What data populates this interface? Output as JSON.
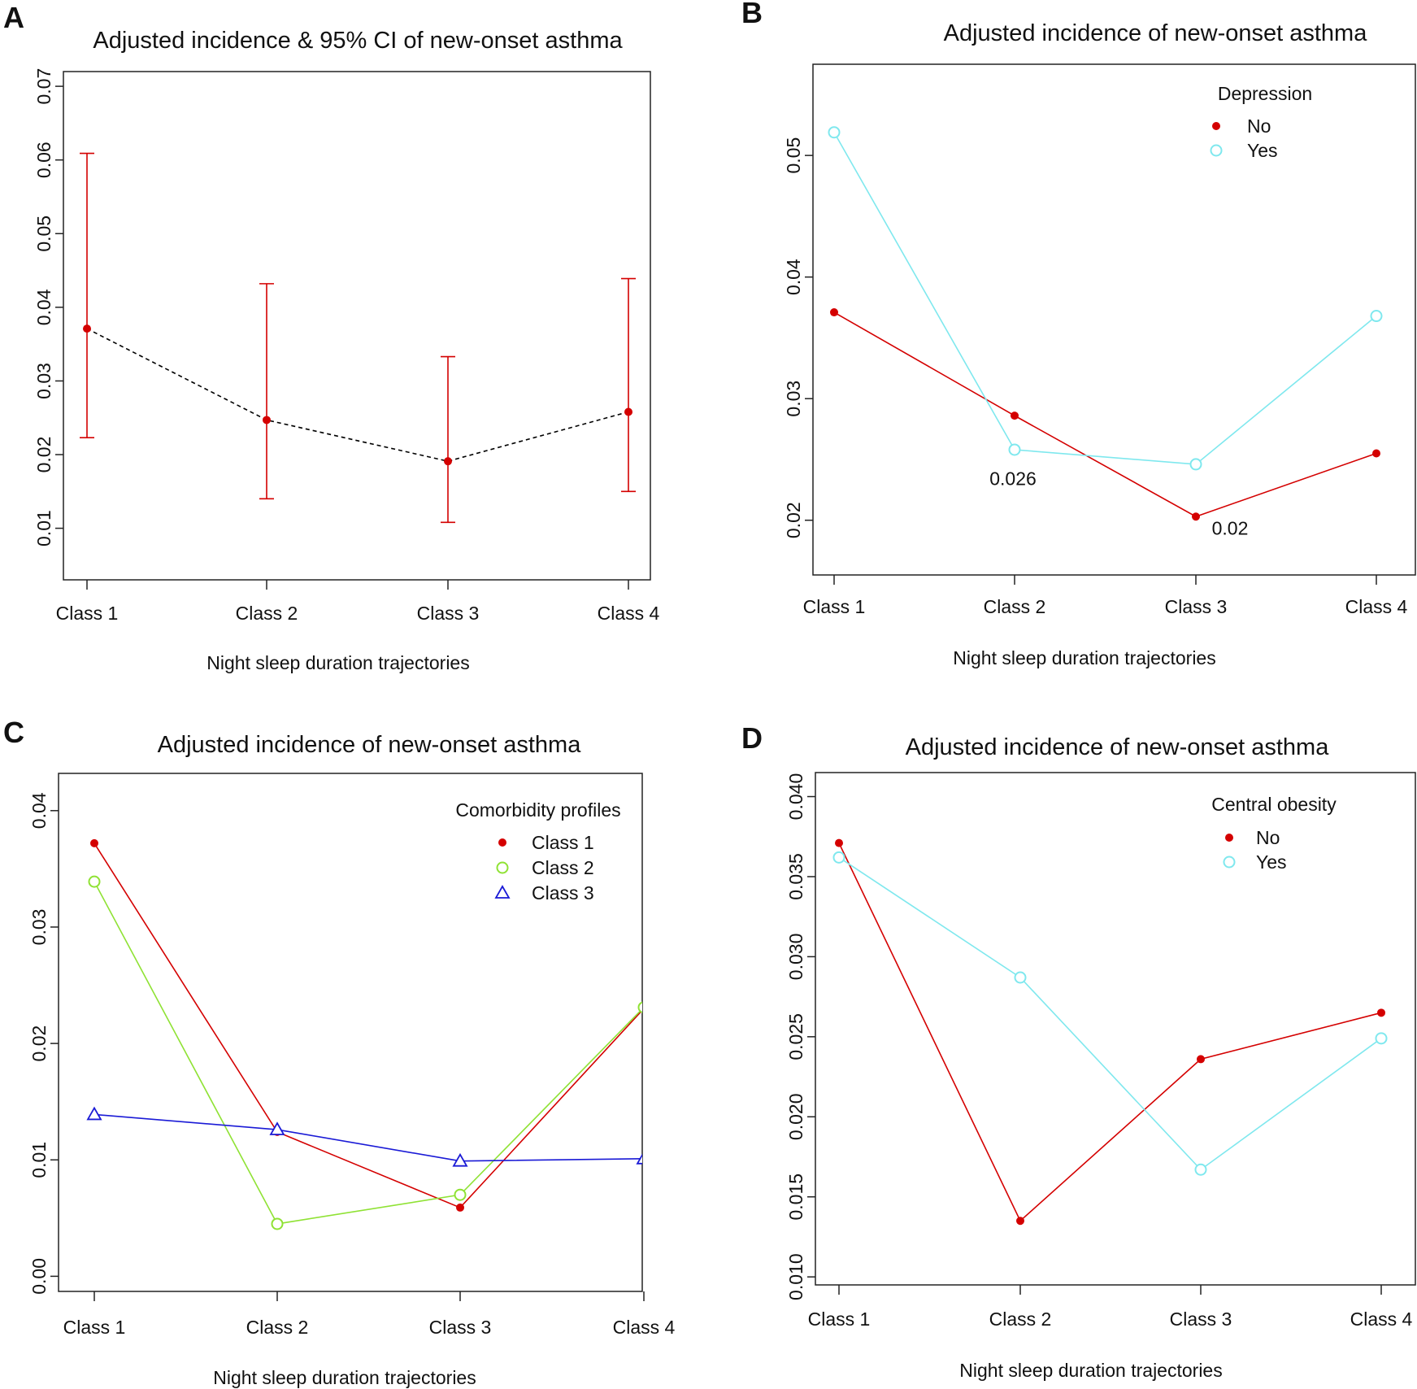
{
  "chart_data": [
    {
      "panel_letter": "A",
      "type": "line",
      "title": "Adjusted incidence & 95% CI of new-onset asthma",
      "xlabel": "Night sleep duration trajectories",
      "ylabel": "",
      "categories": [
        "Class 1",
        "Class 2",
        "Class 3",
        "Class 4"
      ],
      "yticks": [
        "0.01",
        "0.02",
        "0.03",
        "0.04",
        "0.05",
        "0.06",
        "0.07"
      ],
      "ylim": [
        0.003,
        0.072
      ],
      "grid": false,
      "series": [
        {
          "values": [
            0.0371,
            0.0247,
            0.0191,
            0.0258
          ],
          "ci_lower": [
            0.0223,
            0.014,
            0.0108,
            0.015
          ],
          "ci_upper": [
            0.0609,
            0.0432,
            0.0333,
            0.0439
          ],
          "color": "#d40000",
          "line_color": "#000000",
          "line_style": "dashed",
          "marker": "dot"
        }
      ]
    },
    {
      "panel_letter": "B",
      "type": "line",
      "title": "Adjusted incidence of new-onset asthma",
      "xlabel": "Night sleep duration trajectories",
      "ylabel": "",
      "categories": [
        "Class 1",
        "Class 2",
        "Class 3",
        "Class 4"
      ],
      "yticks": [
        "0.02",
        "0.03",
        "0.04",
        "0.05"
      ],
      "ylim": [
        0.0155,
        0.0575
      ],
      "grid": false,
      "legend": {
        "title": "Depression",
        "position": "top-right"
      },
      "series": [
        {
          "name": "No",
          "values": [
            0.0371,
            0.0286,
            0.0203,
            0.0255
          ],
          "color": "#d40000",
          "marker": "dot"
        },
        {
          "name": "Yes",
          "values": [
            0.0519,
            0.0258,
            0.0246,
            0.0368
          ],
          "color": "#7fe8ee",
          "marker": "circle"
        }
      ],
      "annotations": [
        {
          "text": "0.026",
          "category": "Class 2",
          "y": 0.0229
        },
        {
          "text": "0.02",
          "category": "Class 3",
          "y": 0.0188
        }
      ]
    },
    {
      "panel_letter": "C",
      "type": "line",
      "title": "Adjusted incidence of new-onset asthma",
      "xlabel": "Night sleep duration trajectories",
      "ylabel": "",
      "categories": [
        "Class 1",
        "Class 2",
        "Class 3",
        "Class 4"
      ],
      "yticks": [
        "0.00",
        "0.01",
        "0.02",
        "0.03",
        "0.04"
      ],
      "ylim": [
        -0.0013,
        0.0432
      ],
      "grid": false,
      "legend": {
        "title": "Comorbidity profiles",
        "position": "top-right"
      },
      "series": [
        {
          "name": "Class 1",
          "values": [
            0.0372,
            0.0124,
            0.0059,
            0.023
          ],
          "color": "#d40000",
          "marker": "dot"
        },
        {
          "name": "Class 2",
          "values": [
            0.0339,
            0.0045,
            0.007,
            0.0231
          ],
          "color": "#8fe234",
          "marker": "circle"
        },
        {
          "name": "Class 3",
          "values": [
            0.0139,
            0.0126,
            0.0099,
            0.0101
          ],
          "color": "#1a1ad6",
          "marker": "triangle"
        }
      ]
    },
    {
      "panel_letter": "D",
      "type": "line",
      "title": "Adjusted incidence of new-onset asthma",
      "xlabel": "Night sleep duration trajectories",
      "ylabel": "",
      "categories": [
        "Class 1",
        "Class 2",
        "Class 3",
        "Class 4"
      ],
      "yticks": [
        "0.010",
        "0.015",
        "0.020",
        "0.025",
        "0.030",
        "0.035",
        "0.040"
      ],
      "ylim": [
        0.0095,
        0.0415
      ],
      "grid": false,
      "legend": {
        "title": "Central obesity",
        "position": "top-right"
      },
      "series": [
        {
          "name": "No",
          "values": [
            0.0371,
            0.0135,
            0.0236,
            0.0265
          ],
          "color": "#d40000",
          "marker": "dot"
        },
        {
          "name": "Yes",
          "values": [
            0.0362,
            0.0287,
            0.0167,
            0.0249
          ],
          "color": "#7fe8ee",
          "marker": "circle"
        }
      ]
    }
  ]
}
